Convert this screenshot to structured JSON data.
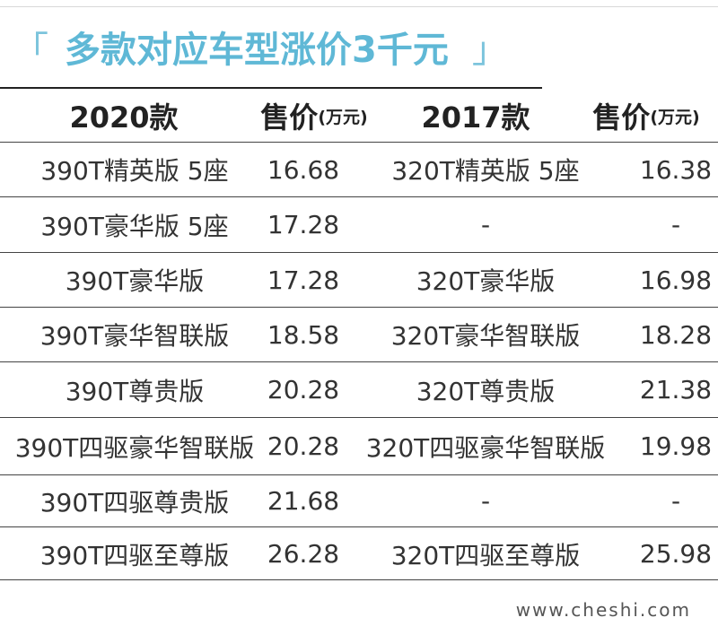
{
  "title": {
    "bracket_left": "「",
    "text": "多款对应车型涨价3千元",
    "bracket_right": "」"
  },
  "table": {
    "headers": {
      "model_2020": "2020款",
      "price_2020": "售价",
      "unit_2020": "(万元)",
      "model_2017": "2017款",
      "price_2017": "售价",
      "unit_2017": "(万元)"
    },
    "rows": [
      {
        "model_2020": "390T精英版 5座",
        "price_2020": "16.68",
        "model_2017": "320T精英版 5座",
        "price_2017": "16.38"
      },
      {
        "model_2020": "390T豪华版 5座",
        "price_2020": "17.28",
        "model_2017": "-",
        "price_2017": "-"
      },
      {
        "model_2020": "390T豪华版",
        "price_2020": "17.28",
        "model_2017": "320T豪华版",
        "price_2017": "16.98"
      },
      {
        "model_2020": "390T豪华智联版",
        "price_2020": "18.58",
        "model_2017": "320T豪华智联版",
        "price_2017": "18.28"
      },
      {
        "model_2020": "390T尊贵版",
        "price_2020": "20.28",
        "model_2017": "320T尊贵版",
        "price_2017": "21.38"
      },
      {
        "model_2020": "390T四驱豪华智联版",
        "price_2020": "20.28",
        "model_2017": "320T四驱豪华智联版",
        "price_2017": "19.98"
      },
      {
        "model_2020": "390T四驱尊贵版",
        "price_2020": "21.68",
        "model_2017": "-",
        "price_2017": "-"
      },
      {
        "model_2020": "390T四驱至尊版",
        "price_2020": "26.28",
        "model_2017": "320T四驱至尊版",
        "price_2017": "25.98"
      }
    ]
  },
  "watermark": "www.cheshi.com",
  "colors": {
    "title": "#5fb8d6",
    "text": "#333333",
    "rule": "#444444"
  }
}
